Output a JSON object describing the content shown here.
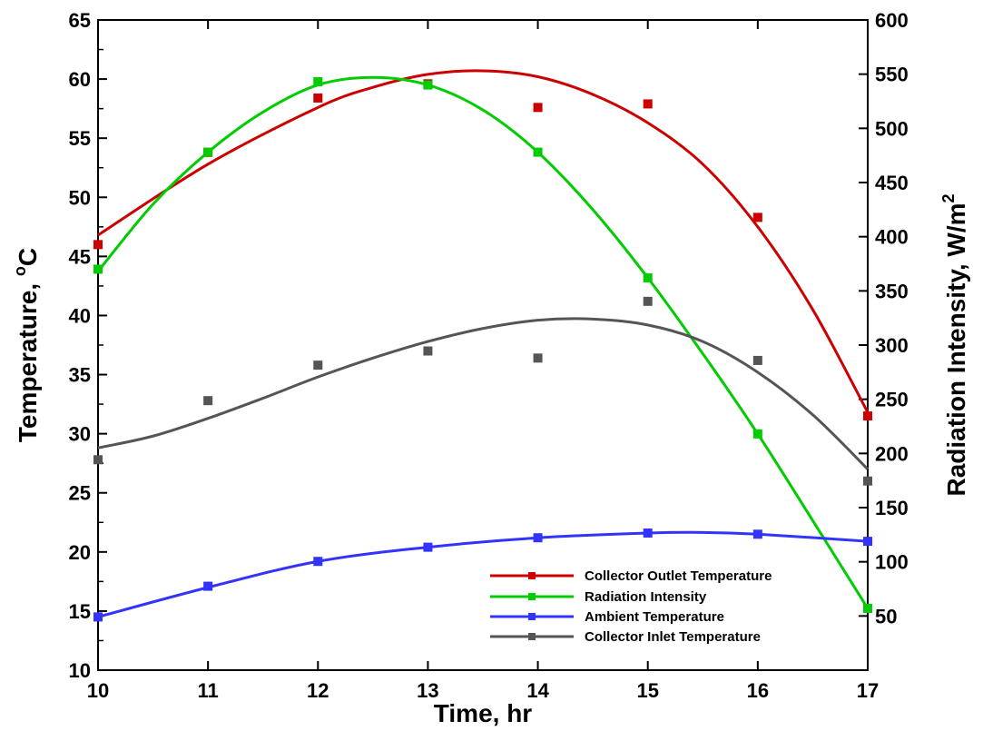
{
  "chart_data": {
    "type": "line",
    "title": "",
    "xlabel": "Time, hr",
    "ylabel_left_main": "Temperature, ",
    "ylabel_left_sup": "o",
    "ylabel_left_unit": "C",
    "ylabel_right_main": "Radiation Intensity, W/m",
    "ylabel_right_sup": "2",
    "xlim": [
      10,
      17
    ],
    "ylim_left": [
      10,
      65
    ],
    "ylim_right": [
      0,
      600
    ],
    "x_ticks": [
      10,
      11,
      12,
      13,
      14,
      15,
      16,
      17
    ],
    "y_left_ticks": [
      10,
      15,
      20,
      25,
      30,
      35,
      40,
      45,
      50,
      55,
      60,
      65
    ],
    "y_right_ticks": [
      50,
      100,
      150,
      200,
      250,
      300,
      350,
      400,
      450,
      500,
      550,
      600
    ],
    "legend_position": "bottom-right",
    "grid": false,
    "series": [
      {
        "name": "Collector Outlet Temperature",
        "color": "#cc0000",
        "axis": "left",
        "x": [
          10,
          11,
          12,
          13,
          14,
          15,
          16,
          17
        ],
        "y": [
          46.0,
          53.8,
          58.4,
          59.6,
          57.6,
          57.9,
          48.3,
          31.5
        ],
        "fit": [
          [
            10,
            46.8
          ],
          [
            11,
            52.8
          ],
          [
            12,
            57.6
          ],
          [
            12.5,
            59.3
          ],
          [
            13,
            60.4
          ],
          [
            13.5,
            60.7
          ],
          [
            14,
            60.2
          ],
          [
            14.5,
            58.7
          ],
          [
            15,
            56.3
          ],
          [
            15.5,
            52.8
          ],
          [
            16,
            47.5
          ],
          [
            16.5,
            40.5
          ],
          [
            17,
            31.8
          ]
        ]
      },
      {
        "name": "Radiation Intensity",
        "color": "#00cc00",
        "axis": "right",
        "x": [
          10,
          11,
          12,
          13,
          14,
          15,
          16,
          17
        ],
        "y": [
          370,
          478,
          543,
          540,
          478,
          362,
          218,
          57
        ],
        "fit": [
          [
            10,
            368
          ],
          [
            10.5,
            430
          ],
          [
            11,
            478
          ],
          [
            11.5,
            515
          ],
          [
            12,
            540
          ],
          [
            12.5,
            547
          ],
          [
            13,
            540
          ],
          [
            13.5,
            517
          ],
          [
            14,
            478
          ],
          [
            14.5,
            425
          ],
          [
            15,
            362
          ],
          [
            15.5,
            292
          ],
          [
            16,
            218
          ],
          [
            16.5,
            138
          ],
          [
            17,
            57
          ]
        ]
      },
      {
        "name": "Ambient Temperature",
        "color": "#3333ff",
        "axis": "left",
        "x": [
          10,
          11,
          12,
          13,
          14,
          15,
          16,
          17
        ],
        "y": [
          14.5,
          17.1,
          19.2,
          20.4,
          21.2,
          21.6,
          21.5,
          20.9
        ],
        "fit": [
          [
            10,
            14.5
          ],
          [
            11,
            17.0
          ],
          [
            12,
            19.2
          ],
          [
            13,
            20.4
          ],
          [
            14,
            21.2
          ],
          [
            15,
            21.6
          ],
          [
            15.5,
            21.65
          ],
          [
            16,
            21.5
          ],
          [
            17,
            20.9
          ]
        ]
      },
      {
        "name": "Collector Inlet Temperature",
        "color": "#555555",
        "axis": "left",
        "x": [
          10,
          11,
          12,
          13,
          14,
          15,
          16,
          17
        ],
        "y": [
          27.8,
          32.8,
          35.8,
          37.0,
          36.4,
          41.2,
          36.2,
          26.0
        ],
        "fit": [
          [
            10,
            28.8
          ],
          [
            10.5,
            29.8
          ],
          [
            11,
            31.3
          ],
          [
            11.5,
            33.0
          ],
          [
            12,
            34.8
          ],
          [
            12.5,
            36.4
          ],
          [
            13,
            37.8
          ],
          [
            13.5,
            38.9
          ],
          [
            14,
            39.6
          ],
          [
            14.5,
            39.7
          ],
          [
            15,
            39.2
          ],
          [
            15.5,
            37.8
          ],
          [
            16,
            35.2
          ],
          [
            16.5,
            31.6
          ],
          [
            17,
            27.0
          ]
        ]
      }
    ]
  }
}
